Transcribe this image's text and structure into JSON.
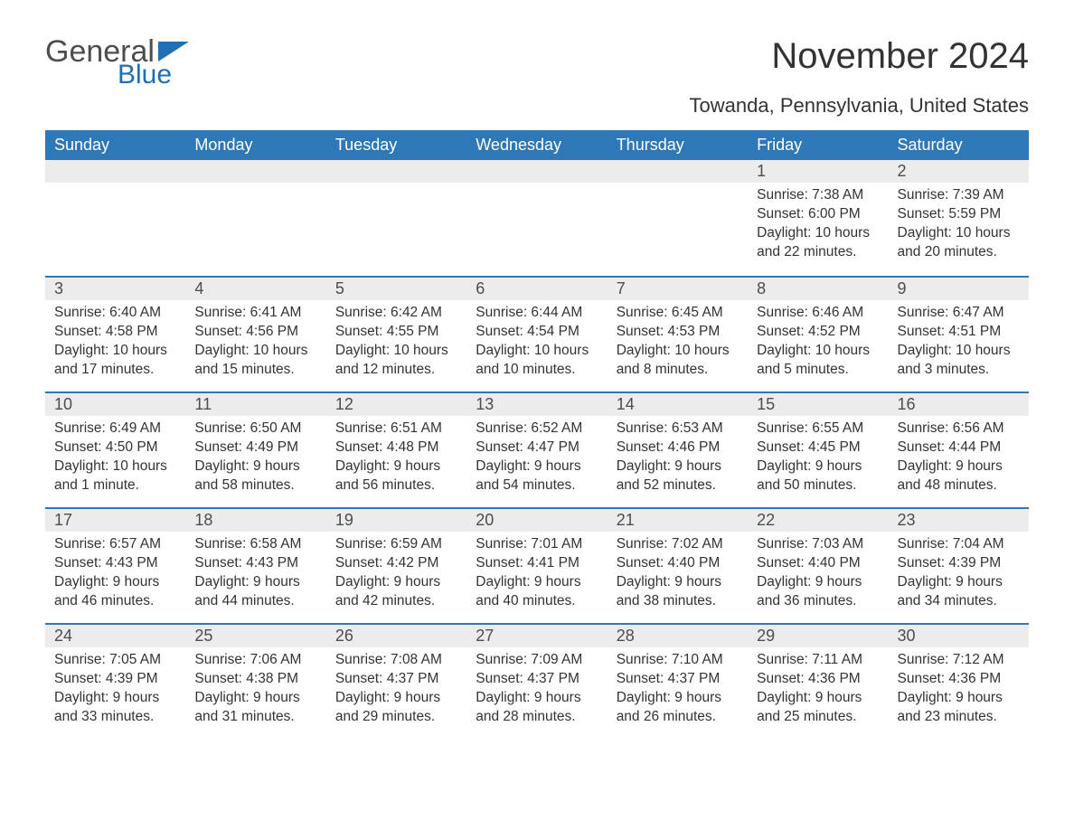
{
  "brand": {
    "general": "General",
    "blue": "Blue",
    "flag_color": "#1f6fb2"
  },
  "title": "November 2024",
  "location": "Towanda, Pennsylvania, United States",
  "colors": {
    "header_bg": "#2f78b7",
    "header_text": "#ffffff",
    "daynum_bg": "#ececec",
    "row_border": "#2f78b7",
    "body_text": "#333333"
  },
  "weekdays": [
    "Sunday",
    "Monday",
    "Tuesday",
    "Wednesday",
    "Thursday",
    "Friday",
    "Saturday"
  ],
  "weeks": [
    [
      null,
      null,
      null,
      null,
      null,
      {
        "n": "1",
        "sunrise": "Sunrise: 7:38 AM",
        "sunset": "Sunset: 6:00 PM",
        "daylight": "Daylight: 10 hours and 22 minutes."
      },
      {
        "n": "2",
        "sunrise": "Sunrise: 7:39 AM",
        "sunset": "Sunset: 5:59 PM",
        "daylight": "Daylight: 10 hours and 20 minutes."
      }
    ],
    [
      {
        "n": "3",
        "sunrise": "Sunrise: 6:40 AM",
        "sunset": "Sunset: 4:58 PM",
        "daylight": "Daylight: 10 hours and 17 minutes."
      },
      {
        "n": "4",
        "sunrise": "Sunrise: 6:41 AM",
        "sunset": "Sunset: 4:56 PM",
        "daylight": "Daylight: 10 hours and 15 minutes."
      },
      {
        "n": "5",
        "sunrise": "Sunrise: 6:42 AM",
        "sunset": "Sunset: 4:55 PM",
        "daylight": "Daylight: 10 hours and 12 minutes."
      },
      {
        "n": "6",
        "sunrise": "Sunrise: 6:44 AM",
        "sunset": "Sunset: 4:54 PM",
        "daylight": "Daylight: 10 hours and 10 minutes."
      },
      {
        "n": "7",
        "sunrise": "Sunrise: 6:45 AM",
        "sunset": "Sunset: 4:53 PM",
        "daylight": "Daylight: 10 hours and 8 minutes."
      },
      {
        "n": "8",
        "sunrise": "Sunrise: 6:46 AM",
        "sunset": "Sunset: 4:52 PM",
        "daylight": "Daylight: 10 hours and 5 minutes."
      },
      {
        "n": "9",
        "sunrise": "Sunrise: 6:47 AM",
        "sunset": "Sunset: 4:51 PM",
        "daylight": "Daylight: 10 hours and 3 minutes."
      }
    ],
    [
      {
        "n": "10",
        "sunrise": "Sunrise: 6:49 AM",
        "sunset": "Sunset: 4:50 PM",
        "daylight": "Daylight: 10 hours and 1 minute."
      },
      {
        "n": "11",
        "sunrise": "Sunrise: 6:50 AM",
        "sunset": "Sunset: 4:49 PM",
        "daylight": "Daylight: 9 hours and 58 minutes."
      },
      {
        "n": "12",
        "sunrise": "Sunrise: 6:51 AM",
        "sunset": "Sunset: 4:48 PM",
        "daylight": "Daylight: 9 hours and 56 minutes."
      },
      {
        "n": "13",
        "sunrise": "Sunrise: 6:52 AM",
        "sunset": "Sunset: 4:47 PM",
        "daylight": "Daylight: 9 hours and 54 minutes."
      },
      {
        "n": "14",
        "sunrise": "Sunrise: 6:53 AM",
        "sunset": "Sunset: 4:46 PM",
        "daylight": "Daylight: 9 hours and 52 minutes."
      },
      {
        "n": "15",
        "sunrise": "Sunrise: 6:55 AM",
        "sunset": "Sunset: 4:45 PM",
        "daylight": "Daylight: 9 hours and 50 minutes."
      },
      {
        "n": "16",
        "sunrise": "Sunrise: 6:56 AM",
        "sunset": "Sunset: 4:44 PM",
        "daylight": "Daylight: 9 hours and 48 minutes."
      }
    ],
    [
      {
        "n": "17",
        "sunrise": "Sunrise: 6:57 AM",
        "sunset": "Sunset: 4:43 PM",
        "daylight": "Daylight: 9 hours and 46 minutes."
      },
      {
        "n": "18",
        "sunrise": "Sunrise: 6:58 AM",
        "sunset": "Sunset: 4:43 PM",
        "daylight": "Daylight: 9 hours and 44 minutes."
      },
      {
        "n": "19",
        "sunrise": "Sunrise: 6:59 AM",
        "sunset": "Sunset: 4:42 PM",
        "daylight": "Daylight: 9 hours and 42 minutes."
      },
      {
        "n": "20",
        "sunrise": "Sunrise: 7:01 AM",
        "sunset": "Sunset: 4:41 PM",
        "daylight": "Daylight: 9 hours and 40 minutes."
      },
      {
        "n": "21",
        "sunrise": "Sunrise: 7:02 AM",
        "sunset": "Sunset: 4:40 PM",
        "daylight": "Daylight: 9 hours and 38 minutes."
      },
      {
        "n": "22",
        "sunrise": "Sunrise: 7:03 AM",
        "sunset": "Sunset: 4:40 PM",
        "daylight": "Daylight: 9 hours and 36 minutes."
      },
      {
        "n": "23",
        "sunrise": "Sunrise: 7:04 AM",
        "sunset": "Sunset: 4:39 PM",
        "daylight": "Daylight: 9 hours and 34 minutes."
      }
    ],
    [
      {
        "n": "24",
        "sunrise": "Sunrise: 7:05 AM",
        "sunset": "Sunset: 4:39 PM",
        "daylight": "Daylight: 9 hours and 33 minutes."
      },
      {
        "n": "25",
        "sunrise": "Sunrise: 7:06 AM",
        "sunset": "Sunset: 4:38 PM",
        "daylight": "Daylight: 9 hours and 31 minutes."
      },
      {
        "n": "26",
        "sunrise": "Sunrise: 7:08 AM",
        "sunset": "Sunset: 4:37 PM",
        "daylight": "Daylight: 9 hours and 29 minutes."
      },
      {
        "n": "27",
        "sunrise": "Sunrise: 7:09 AM",
        "sunset": "Sunset: 4:37 PM",
        "daylight": "Daylight: 9 hours and 28 minutes."
      },
      {
        "n": "28",
        "sunrise": "Sunrise: 7:10 AM",
        "sunset": "Sunset: 4:37 PM",
        "daylight": "Daylight: 9 hours and 26 minutes."
      },
      {
        "n": "29",
        "sunrise": "Sunrise: 7:11 AM",
        "sunset": "Sunset: 4:36 PM",
        "daylight": "Daylight: 9 hours and 25 minutes."
      },
      {
        "n": "30",
        "sunrise": "Sunrise: 7:12 AM",
        "sunset": "Sunset: 4:36 PM",
        "daylight": "Daylight: 9 hours and 23 minutes."
      }
    ]
  ]
}
